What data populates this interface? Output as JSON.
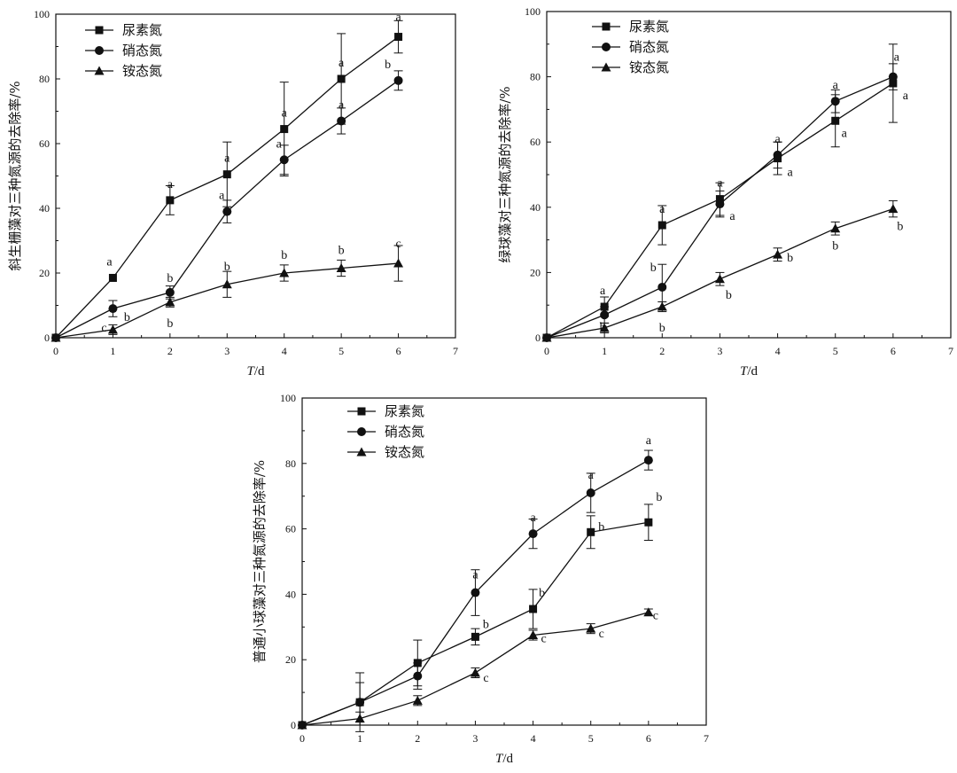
{
  "chart_data": [
    {
      "type": "line",
      "ylabel": "斜生栅藻对三种氮源的去除率/%",
      "xlabel_italic": "T",
      "xlabel_rest": "/d",
      "xlim": [
        0,
        7
      ],
      "ylim": [
        0,
        100
      ],
      "xticks": [
        "0",
        "1",
        "2",
        "3",
        "4",
        "5",
        "6",
        "7"
      ],
      "yticks": [
        "0",
        "20",
        "40",
        "60",
        "80",
        "100"
      ],
      "legend_position": "top-left",
      "x": [
        0,
        1,
        2,
        3,
        4,
        5,
        6
      ],
      "series": [
        {
          "name": "尿素氮",
          "marker": "square",
          "values": [
            0,
            18.5,
            42.5,
            50.5,
            64.5,
            80,
            93
          ],
          "errors": [
            0,
            0,
            4.5,
            10,
            14.5,
            14,
            5
          ],
          "labels": [
            "",
            "a",
            "a",
            "a",
            "a",
            "a",
            "a"
          ]
        },
        {
          "name": "硝态氮",
          "marker": "circle",
          "values": [
            0,
            9,
            14,
            39,
            55,
            67,
            79.5
          ],
          "errors": [
            0,
            2.5,
            2,
            3.5,
            4.5,
            4,
            3
          ],
          "labels": [
            "",
            "b",
            "b",
            "a",
            "a",
            "a",
            "b"
          ]
        },
        {
          "name": "铵态氮",
          "marker": "triangle",
          "values": [
            0,
            2.5,
            11,
            16.5,
            20,
            21.5,
            23
          ],
          "errors": [
            0,
            1.5,
            1.5,
            4,
            2.5,
            2.5,
            5.5
          ],
          "labels": [
            "",
            "c",
            "b",
            "b",
            "b",
            "b",
            "c"
          ]
        }
      ]
    },
    {
      "type": "line",
      "ylabel": "绿球藻对三种氮源的去除率/%",
      "xlabel_italic": "T",
      "xlabel_rest": "/d",
      "xlim": [
        0,
        7
      ],
      "ylim": [
        0,
        100
      ],
      "xticks": [
        "0",
        "1",
        "2",
        "3",
        "4",
        "5",
        "6",
        "7"
      ],
      "yticks": [
        "0",
        "20",
        "40",
        "60",
        "80",
        "100"
      ],
      "legend_position": "top-left",
      "x": [
        0,
        1,
        2,
        3,
        4,
        5,
        6
      ],
      "series": [
        {
          "name": "尿素氮",
          "marker": "square",
          "values": [
            0,
            9.5,
            34.5,
            42.5,
            55,
            66.5,
            78
          ],
          "errors": [
            0,
            3,
            6,
            5,
            5,
            8,
            12
          ],
          "labels": [
            "",
            "a",
            "a",
            "a",
            "a",
            "a",
            "a"
          ]
        },
        {
          "name": "硝态氮",
          "marker": "circle",
          "values": [
            0,
            7,
            15.5,
            41,
            56,
            72.5,
            80
          ],
          "errors": [
            0,
            2.5,
            7,
            4,
            4,
            3.5,
            4
          ],
          "labels": [
            "",
            "b",
            "b",
            "a",
            "a",
            "a",
            "a"
          ]
        },
        {
          "name": "铵态氮",
          "marker": "triangle",
          "values": [
            0,
            3,
            9.5,
            18,
            25.5,
            33.5,
            39.5
          ],
          "errors": [
            0,
            1.5,
            1.5,
            2,
            2,
            2,
            2.5
          ],
          "labels": [
            "",
            "c",
            "b",
            "b",
            "b",
            "b",
            "b"
          ]
        }
      ]
    },
    {
      "type": "line",
      "ylabel": "普通小球藻对三种氮源的去除率/%",
      "xlabel_italic": "T",
      "xlabel_rest": "/d",
      "xlim": [
        0,
        7
      ],
      "ylim": [
        0,
        100
      ],
      "xticks": [
        "0",
        "1",
        "2",
        "3",
        "4",
        "5",
        "6",
        "7"
      ],
      "yticks": [
        "0",
        "20",
        "40",
        "60",
        "80",
        "100"
      ],
      "legend_position": "top-left",
      "x": [
        0,
        1,
        2,
        3,
        4,
        5,
        6
      ],
      "series": [
        {
          "name": "尿素氮",
          "marker": "square",
          "values": [
            0,
            7,
            19,
            27,
            35.5,
            59,
            62
          ],
          "errors": [
            0,
            9,
            7,
            2.5,
            6,
            5,
            5.5
          ],
          "labels": [
            "",
            "",
            "",
            "b",
            "b",
            "b",
            "b"
          ]
        },
        {
          "name": "硝态氮",
          "marker": "circle",
          "values": [
            0,
            7,
            15,
            40.5,
            58.5,
            71,
            81
          ],
          "errors": [
            0,
            6,
            4,
            7,
            4.5,
            6,
            3
          ],
          "labels": [
            "",
            "",
            "",
            "a",
            "a",
            "a",
            "a"
          ]
        },
        {
          "name": "铵态氮",
          "marker": "triangle",
          "values": [
            0,
            2,
            7.5,
            16,
            27.5,
            29.5,
            34.5
          ],
          "errors": [
            0,
            2,
            1.5,
            1.5,
            1.5,
            1.5,
            1
          ],
          "labels": [
            "",
            "",
            "",
            "c",
            "c",
            "c",
            "c"
          ]
        }
      ]
    }
  ]
}
